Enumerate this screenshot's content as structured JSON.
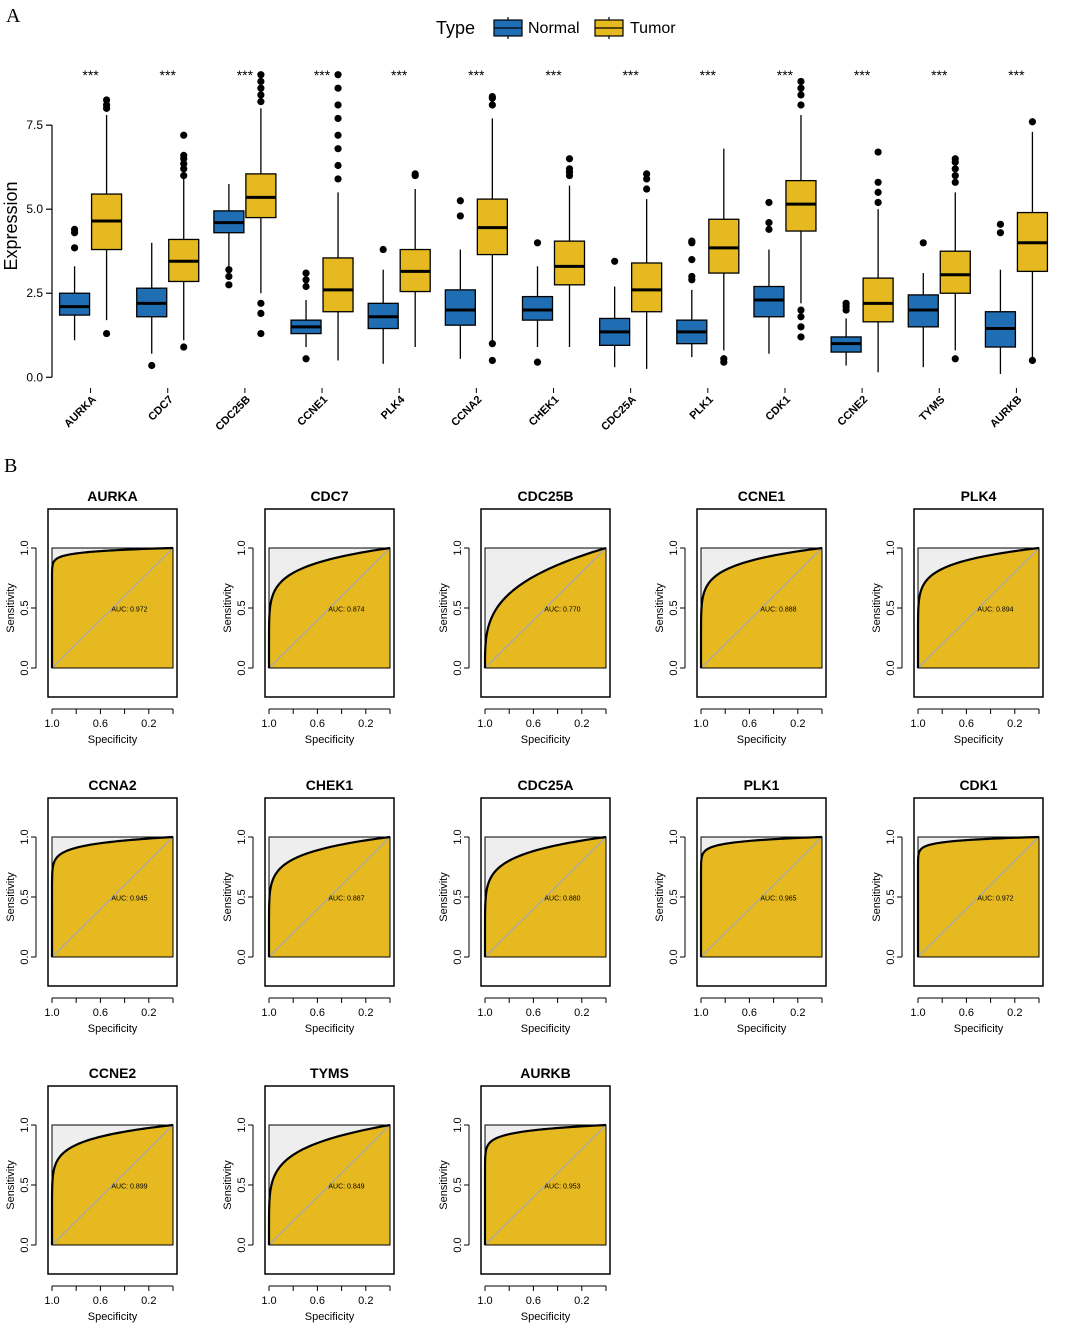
{
  "panel_a": {
    "letter": "A",
    "legend": {
      "title": "Type",
      "items": [
        {
          "name": "Normal",
          "color": "#1f6db3"
        },
        {
          "name": "Tumor",
          "color": "#e6b920"
        }
      ]
    }
  },
  "panel_b": {
    "letter": "B"
  },
  "chart_data": [
    {
      "type": "boxplot",
      "title": "",
      "xlabel": "",
      "ylabel": "Expression",
      "ylim": [
        -0.2,
        9.2
      ],
      "yticks": [
        0.0,
        2.5,
        5.0,
        7.5
      ],
      "ytick_labels": [
        "0.0",
        "2.5",
        "5.0",
        "7.5"
      ],
      "categories": [
        "AURKA",
        "CDC7",
        "CDC25B",
        "CCNE1",
        "PLK4",
        "CCNA2",
        "CHEK1",
        "CDC25A",
        "PLK1",
        "CDK1",
        "CCNE2",
        "TYMS",
        "AURKB"
      ],
      "significance": [
        "***",
        "***",
        "***",
        "***",
        "***",
        "***",
        "***",
        "***",
        "***",
        "***",
        "***",
        "***",
        "***"
      ],
      "series": [
        {
          "name": "Normal",
          "color": "#1f6db3",
          "boxes": [
            {
              "min": 1.1,
              "q1": 1.85,
              "median": 2.1,
              "q3": 2.5,
              "max": 3.3,
              "outliers": [
                3.85,
                4.3,
                4.4
              ]
            },
            {
              "min": 0.7,
              "q1": 1.8,
              "median": 2.2,
              "q3": 2.65,
              "max": 4.0,
              "outliers": [
                0.35
              ]
            },
            {
              "min": 3.3,
              "q1": 4.3,
              "median": 4.6,
              "q3": 4.95,
              "max": 5.75,
              "outliers": [
                2.75,
                3.0,
                3.2
              ]
            },
            {
              "min": 0.9,
              "q1": 1.3,
              "median": 1.5,
              "q3": 1.7,
              "max": 2.3,
              "outliers": [
                0.55,
                2.7,
                2.9,
                3.1
              ]
            },
            {
              "min": 0.4,
              "q1": 1.45,
              "median": 1.8,
              "q3": 2.2,
              "max": 3.2,
              "outliers": [
                3.8
              ]
            },
            {
              "min": 0.55,
              "q1": 1.55,
              "median": 2.0,
              "q3": 2.6,
              "max": 3.8,
              "outliers": [
                4.8,
                5.25
              ]
            },
            {
              "min": 0.9,
              "q1": 1.7,
              "median": 2.0,
              "q3": 2.4,
              "max": 3.3,
              "outliers": [
                0.45,
                4.0
              ]
            },
            {
              "min": 0.3,
              "q1": 0.95,
              "median": 1.35,
              "q3": 1.75,
              "max": 2.7,
              "outliers": [
                3.45
              ]
            },
            {
              "min": 0.6,
              "q1": 1.0,
              "median": 1.35,
              "q3": 1.7,
              "max": 2.6,
              "outliers": [
                2.9,
                3.0,
                3.5,
                4.0,
                4.05
              ]
            },
            {
              "min": 0.7,
              "q1": 1.8,
              "median": 2.3,
              "q3": 2.7,
              "max": 3.8,
              "outliers": [
                4.4,
                4.6,
                5.2
              ]
            },
            {
              "min": 0.35,
              "q1": 0.75,
              "median": 1.0,
              "q3": 1.2,
              "max": 1.75,
              "outliers": [
                2.0,
                2.1,
                2.2
              ]
            },
            {
              "min": 0.3,
              "q1": 1.5,
              "median": 2.0,
              "q3": 2.45,
              "max": 3.1,
              "outliers": [
                4.0
              ]
            },
            {
              "min": 0.1,
              "q1": 0.9,
              "median": 1.45,
              "q3": 1.95,
              "max": 3.2,
              "outliers": [
                4.3,
                4.55
              ]
            }
          ]
        },
        {
          "name": "Tumor",
          "color": "#e6b920",
          "boxes": [
            {
              "min": 1.7,
              "q1": 3.8,
              "median": 4.65,
              "q3": 5.45,
              "max": 7.8,
              "outliers": [
                1.3,
                8.0,
                8.1,
                8.25
              ]
            },
            {
              "min": 1.1,
              "q1": 2.85,
              "median": 3.45,
              "q3": 4.1,
              "max": 5.9,
              "outliers": [
                0.9,
                6.0,
                6.2,
                6.35,
                6.5,
                6.6,
                7.2
              ]
            },
            {
              "min": 2.5,
              "q1": 4.75,
              "median": 5.35,
              "q3": 6.05,
              "max": 8.0,
              "outliers": [
                1.3,
                1.9,
                2.2,
                8.2,
                8.4,
                8.6,
                8.8,
                9.0
              ]
            },
            {
              "min": 0.5,
              "q1": 1.95,
              "median": 2.6,
              "q3": 3.55,
              "max": 5.5,
              "outliers": [
                5.9,
                6.3,
                6.8,
                7.2,
                7.7,
                8.1,
                8.6,
                9.0
              ]
            },
            {
              "min": 0.9,
              "q1": 2.55,
              "median": 3.15,
              "q3": 3.8,
              "max": 5.6,
              "outliers": [
                6.0,
                6.05
              ]
            },
            {
              "min": 1.1,
              "q1": 3.65,
              "median": 4.45,
              "q3": 5.3,
              "max": 7.7,
              "outliers": [
                0.5,
                1.0,
                8.1,
                8.3,
                8.35
              ]
            },
            {
              "min": 0.9,
              "q1": 2.75,
              "median": 3.3,
              "q3": 4.05,
              "max": 5.7,
              "outliers": [
                6.0,
                6.1,
                6.2,
                6.5
              ]
            },
            {
              "min": 0.25,
              "q1": 1.95,
              "median": 2.6,
              "q3": 3.4,
              "max": 5.3,
              "outliers": [
                5.6,
                5.9,
                6.05
              ]
            },
            {
              "min": 0.8,
              "q1": 3.1,
              "median": 3.85,
              "q3": 4.7,
              "max": 6.8,
              "outliers": [
                0.45,
                0.55
              ]
            },
            {
              "min": 2.2,
              "q1": 4.35,
              "median": 5.15,
              "q3": 5.85,
              "max": 7.8,
              "outliers": [
                1.2,
                1.5,
                1.8,
                2.0,
                8.1,
                8.4,
                8.6,
                8.8
              ]
            },
            {
              "min": 0.15,
              "q1": 1.65,
              "median": 2.2,
              "q3": 2.95,
              "max": 5.0,
              "outliers": [
                5.2,
                5.5,
                5.8,
                6.7
              ]
            },
            {
              "min": 0.8,
              "q1": 2.5,
              "median": 3.05,
              "q3": 3.75,
              "max": 5.5,
              "outliers": [
                0.55,
                5.8,
                6.0,
                6.2,
                6.4,
                6.5
              ]
            },
            {
              "min": 0.6,
              "q1": 3.15,
              "median": 4.0,
              "q3": 4.9,
              "max": 7.3,
              "outliers": [
                0.5,
                7.6
              ]
            }
          ]
        }
      ]
    },
    {
      "type": "roc-grid",
      "xlabel": "Specificity",
      "ylabel": "Sensitivity",
      "xlim": [
        1.0,
        0.0
      ],
      "ylim": [
        0.0,
        1.0
      ],
      "xtick_labels": [
        "1.0",
        "0.6",
        "0.2"
      ],
      "ytick_labels": [
        "0.0",
        "0.5",
        "1.0"
      ],
      "fill_color": "#e6b920",
      "panels": [
        {
          "title": "AURKA",
          "auc": 0.972,
          "auc_label": "AUC: 0.972"
        },
        {
          "title": "CDC7",
          "auc": 0.874,
          "auc_label": "AUC: 0.874"
        },
        {
          "title": "CDC25B",
          "auc": 0.77,
          "auc_label": "AUC: 0.770"
        },
        {
          "title": "CCNE1",
          "auc": 0.888,
          "auc_label": "AUC: 0.888"
        },
        {
          "title": "PLK4",
          "auc": 0.894,
          "auc_label": "AUC: 0.894"
        },
        {
          "title": "CCNA2",
          "auc": 0.945,
          "auc_label": "AUC: 0.945"
        },
        {
          "title": "CHEK1",
          "auc": 0.887,
          "auc_label": "AUC: 0.887"
        },
        {
          "title": "CDC25A",
          "auc": 0.88,
          "auc_label": "AUC: 0.880"
        },
        {
          "title": "PLK1",
          "auc": 0.965,
          "auc_label": "AUC: 0.965"
        },
        {
          "title": "CDK1",
          "auc": 0.972,
          "auc_label": "AUC: 0.972"
        },
        {
          "title": "CCNE2",
          "auc": 0.899,
          "auc_label": "AUC: 0.899"
        },
        {
          "title": "TYMS",
          "auc": 0.849,
          "auc_label": "AUC: 0.849"
        },
        {
          "title": "AURKB",
          "auc": 0.953,
          "auc_label": "AUC: 0.953"
        }
      ]
    }
  ]
}
